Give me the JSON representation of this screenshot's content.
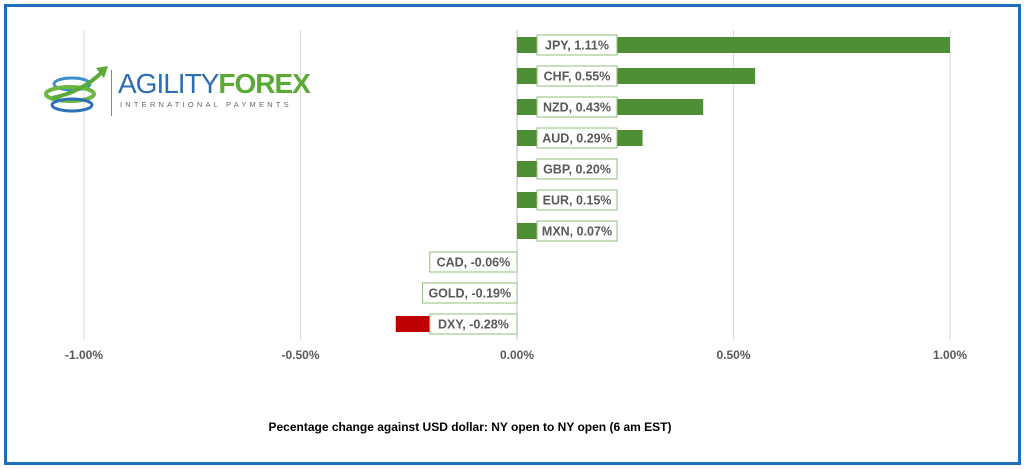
{
  "logo": {
    "brand_a": "AGILITY",
    "brand_b": "FOREX",
    "tagline": "INTERNATIONAL PAYMENTS"
  },
  "chart_data": {
    "type": "bar",
    "orientation": "horizontal",
    "categories": [
      "JPY",
      "CHF",
      "NZD",
      "AUD",
      "GBP",
      "EUR",
      "MXN",
      "CAD",
      "GOLD",
      "DXY"
    ],
    "values": [
      1.11,
      0.55,
      0.43,
      0.29,
      0.2,
      0.15,
      0.07,
      -0.06,
      -0.19,
      -0.28
    ],
    "data_labels": [
      "JPY, 1.11%",
      "CHF, 0.55%",
      "NZD, 0.43%",
      "AUD, 0.29%",
      "GBP, 0.20%",
      "EUR, 0.15%",
      "MXN, 0.07%",
      "CAD, -0.06%",
      "GOLD, -0.19%",
      "DXY, -0.28%"
    ],
    "xlim": [
      -1.0,
      1.0
    ],
    "xticks": [
      -1.0,
      -0.5,
      0,
      0.5,
      1.0
    ],
    "xtick_labels": [
      "-1.00%",
      "-0.50%",
      "0.00%",
      "0.50%",
      "1.00%"
    ],
    "xlabel": "Pecentage change against USD dollar: NY open to  NY open  (6 am EST)",
    "grid": "vertical",
    "colors": {
      "positive": "#4e8f35",
      "negative": "#c00000",
      "label_border": "#8fbf7a"
    }
  }
}
